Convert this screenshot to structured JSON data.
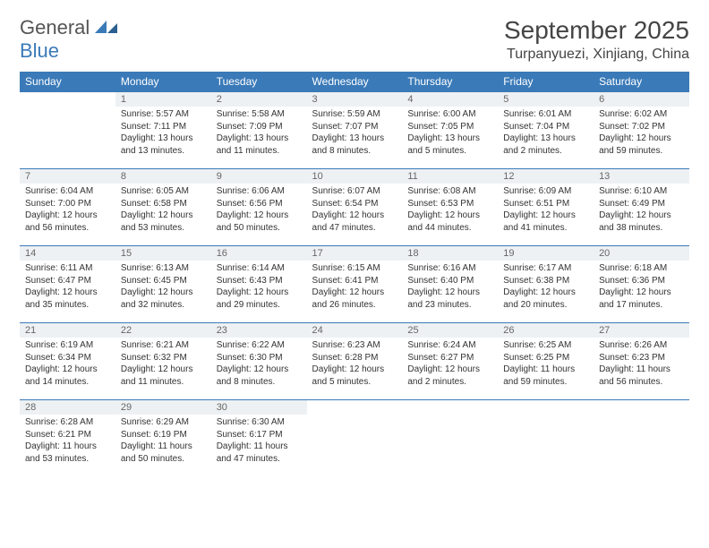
{
  "brand": {
    "line1": "General",
    "line2": "Blue"
  },
  "title": "September 2025",
  "location": "Turpanyuezi, Xinjiang, China",
  "colors": {
    "accent": "#3a7ab8",
    "dayHeaderBg": "#eef1f3",
    "text": "#333333"
  },
  "weekdays": [
    "Sunday",
    "Monday",
    "Tuesday",
    "Wednesday",
    "Thursday",
    "Friday",
    "Saturday"
  ],
  "startOffset": 1,
  "days": [
    {
      "n": 1,
      "sunrise": "5:57 AM",
      "sunset": "7:11 PM",
      "daylight": "13 hours and 13 minutes."
    },
    {
      "n": 2,
      "sunrise": "5:58 AM",
      "sunset": "7:09 PM",
      "daylight": "13 hours and 11 minutes."
    },
    {
      "n": 3,
      "sunrise": "5:59 AM",
      "sunset": "7:07 PM",
      "daylight": "13 hours and 8 minutes."
    },
    {
      "n": 4,
      "sunrise": "6:00 AM",
      "sunset": "7:05 PM",
      "daylight": "13 hours and 5 minutes."
    },
    {
      "n": 5,
      "sunrise": "6:01 AM",
      "sunset": "7:04 PM",
      "daylight": "13 hours and 2 minutes."
    },
    {
      "n": 6,
      "sunrise": "6:02 AM",
      "sunset": "7:02 PM",
      "daylight": "12 hours and 59 minutes."
    },
    {
      "n": 7,
      "sunrise": "6:04 AM",
      "sunset": "7:00 PM",
      "daylight": "12 hours and 56 minutes."
    },
    {
      "n": 8,
      "sunrise": "6:05 AM",
      "sunset": "6:58 PM",
      "daylight": "12 hours and 53 minutes."
    },
    {
      "n": 9,
      "sunrise": "6:06 AM",
      "sunset": "6:56 PM",
      "daylight": "12 hours and 50 minutes."
    },
    {
      "n": 10,
      "sunrise": "6:07 AM",
      "sunset": "6:54 PM",
      "daylight": "12 hours and 47 minutes."
    },
    {
      "n": 11,
      "sunrise": "6:08 AM",
      "sunset": "6:53 PM",
      "daylight": "12 hours and 44 minutes."
    },
    {
      "n": 12,
      "sunrise": "6:09 AM",
      "sunset": "6:51 PM",
      "daylight": "12 hours and 41 minutes."
    },
    {
      "n": 13,
      "sunrise": "6:10 AM",
      "sunset": "6:49 PM",
      "daylight": "12 hours and 38 minutes."
    },
    {
      "n": 14,
      "sunrise": "6:11 AM",
      "sunset": "6:47 PM",
      "daylight": "12 hours and 35 minutes."
    },
    {
      "n": 15,
      "sunrise": "6:13 AM",
      "sunset": "6:45 PM",
      "daylight": "12 hours and 32 minutes."
    },
    {
      "n": 16,
      "sunrise": "6:14 AM",
      "sunset": "6:43 PM",
      "daylight": "12 hours and 29 minutes."
    },
    {
      "n": 17,
      "sunrise": "6:15 AM",
      "sunset": "6:41 PM",
      "daylight": "12 hours and 26 minutes."
    },
    {
      "n": 18,
      "sunrise": "6:16 AM",
      "sunset": "6:40 PM",
      "daylight": "12 hours and 23 minutes."
    },
    {
      "n": 19,
      "sunrise": "6:17 AM",
      "sunset": "6:38 PM",
      "daylight": "12 hours and 20 minutes."
    },
    {
      "n": 20,
      "sunrise": "6:18 AM",
      "sunset": "6:36 PM",
      "daylight": "12 hours and 17 minutes."
    },
    {
      "n": 21,
      "sunrise": "6:19 AM",
      "sunset": "6:34 PM",
      "daylight": "12 hours and 14 minutes."
    },
    {
      "n": 22,
      "sunrise": "6:21 AM",
      "sunset": "6:32 PM",
      "daylight": "12 hours and 11 minutes."
    },
    {
      "n": 23,
      "sunrise": "6:22 AM",
      "sunset": "6:30 PM",
      "daylight": "12 hours and 8 minutes."
    },
    {
      "n": 24,
      "sunrise": "6:23 AM",
      "sunset": "6:28 PM",
      "daylight": "12 hours and 5 minutes."
    },
    {
      "n": 25,
      "sunrise": "6:24 AM",
      "sunset": "6:27 PM",
      "daylight": "12 hours and 2 minutes."
    },
    {
      "n": 26,
      "sunrise": "6:25 AM",
      "sunset": "6:25 PM",
      "daylight": "11 hours and 59 minutes."
    },
    {
      "n": 27,
      "sunrise": "6:26 AM",
      "sunset": "6:23 PM",
      "daylight": "11 hours and 56 minutes."
    },
    {
      "n": 28,
      "sunrise": "6:28 AM",
      "sunset": "6:21 PM",
      "daylight": "11 hours and 53 minutes."
    },
    {
      "n": 29,
      "sunrise": "6:29 AM",
      "sunset": "6:19 PM",
      "daylight": "11 hours and 50 minutes."
    },
    {
      "n": 30,
      "sunrise": "6:30 AM",
      "sunset": "6:17 PM",
      "daylight": "11 hours and 47 minutes."
    }
  ],
  "labels": {
    "sunrise": "Sunrise:",
    "sunset": "Sunset:",
    "daylight": "Daylight:"
  }
}
